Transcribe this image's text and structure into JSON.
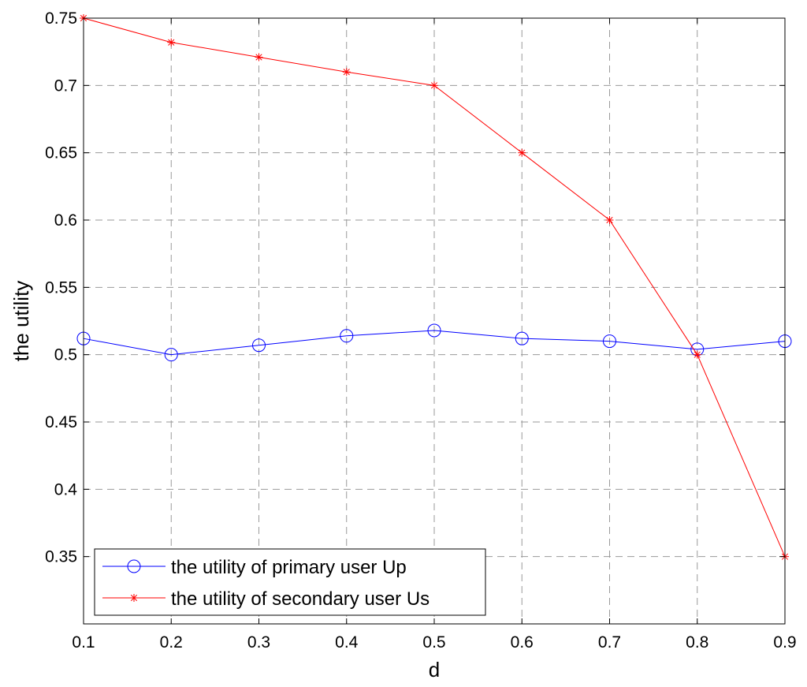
{
  "chart_data": {
    "type": "line",
    "xlabel": "d",
    "ylabel": "the utility",
    "xlim": [
      0.1,
      0.9
    ],
    "ylim": [
      0.3,
      0.75
    ],
    "xticks": [
      "0.1",
      "0.2",
      "0.3",
      "0.4",
      "0.5",
      "0.6",
      "0.7",
      "0.8",
      "0.9"
    ],
    "yticks": [
      "0.35",
      "0.4",
      "0.45",
      "0.5",
      "0.55",
      "0.6",
      "0.65",
      "0.7",
      "0.75"
    ],
    "grid": true,
    "legend_position": "bottom-left",
    "x": [
      0.1,
      0.2,
      0.3,
      0.4,
      0.5,
      0.6,
      0.7,
      0.8,
      0.9
    ],
    "series": [
      {
        "name": "the utility of primary user Up",
        "marker": "circle",
        "color": "#0000ff",
        "values": [
          0.512,
          0.5,
          0.507,
          0.514,
          0.518,
          0.512,
          0.51,
          0.504,
          0.51
        ]
      },
      {
        "name": "the utility of secondary user Us",
        "marker": "star",
        "color": "#ff0000",
        "values": [
          0.75,
          0.732,
          0.721,
          0.71,
          0.7,
          0.65,
          0.6,
          0.5,
          0.35
        ]
      }
    ]
  }
}
